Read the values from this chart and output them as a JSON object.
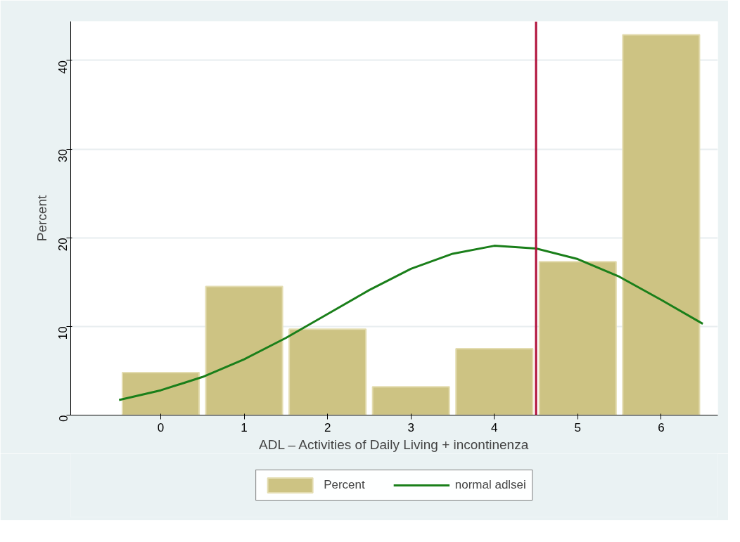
{
  "chart_data": {
    "type": "histogram",
    "xlabel": "ADL – Activities of Daily Living + incontinenza",
    "ylabel": "Percent",
    "bins": [
      -0.5,
      0.5,
      1.5,
      2.5,
      3.5,
      4.5,
      5.5,
      6.5
    ],
    "series": [
      {
        "name": "Percent",
        "color": "#cdc383",
        "values": [
          4.8,
          14.5,
          9.7,
          3.2,
          7.5,
          17.3,
          42.9
        ]
      },
      {
        "type": "line",
        "name": "normal adlsei",
        "color": "#1a7f1a",
        "x": [
          -0.5,
          0,
          0.5,
          1,
          1.5,
          2,
          2.5,
          3,
          3.5,
          4,
          4.5,
          5,
          5.5,
          6,
          6.5
        ],
        "values": [
          1.7,
          2.8,
          4.3,
          6.3,
          8.7,
          11.4,
          14.1,
          16.5,
          18.2,
          19.1,
          18.8,
          17.6,
          15.6,
          13.0,
          10.3
        ]
      }
    ],
    "xlim": [
      -1.08,
      6.68
    ],
    "ylim": [
      0,
      44.4
    ],
    "xticks": [
      0,
      1,
      2,
      3,
      4,
      5,
      6
    ],
    "yticks": [
      0,
      10,
      20,
      30,
      40
    ],
    "ref_lines": [
      {
        "axis": "x",
        "value": 4.5,
        "color": "#b0103a"
      }
    ],
    "grid": "y",
    "legend": "bottom"
  }
}
